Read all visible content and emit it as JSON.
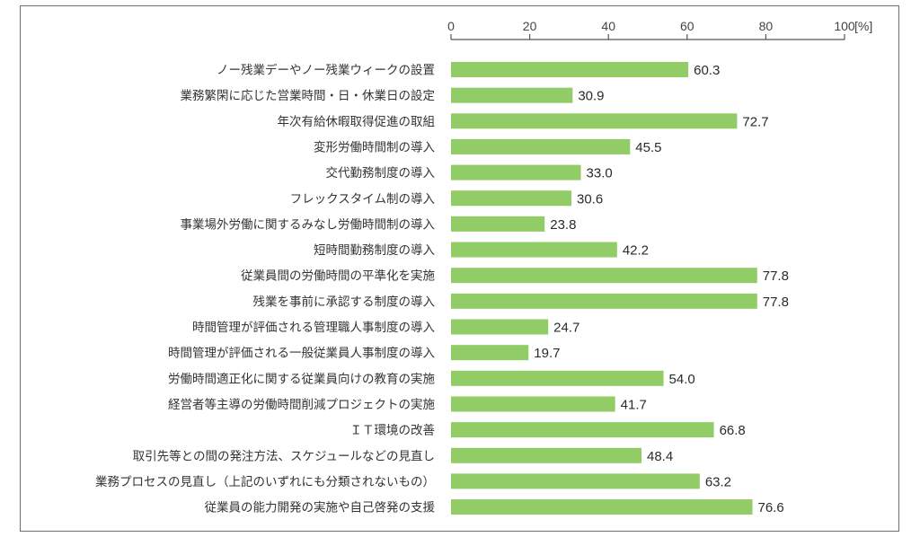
{
  "chart_data": {
    "type": "bar",
    "orientation": "horizontal",
    "unit_label": "[%]",
    "xlim": [
      0,
      100
    ],
    "xticks": [
      0,
      20,
      40,
      60,
      80,
      100
    ],
    "grid": false,
    "bar_color": "#92cc66",
    "categories": [
      "ノー残業デーやノー残業ウィークの設置",
      "業務繁閑に応じた営業時間・日・休業日の設定",
      "年次有給休暇取得促進の取組",
      "変形労働時間制の導入",
      "交代勤務制度の導入",
      "フレックスタイム制の導入",
      "事業場外労働に関するみなし労働時間制の導入",
      "短時間勤務制度の導入",
      "従業員間の労働時間の平準化を実施",
      "残業を事前に承認する制度の導入",
      "時間管理が評価される管理職人事制度の導入",
      "時間管理が評価される一般従業員人事制度の導入",
      "労働時間適正化に関する従業員向けの教育の実施",
      "経営者等主導の労働時間削減プロジェクトの実施",
      "ＩＴ環境の改善",
      "取引先等との間の発注方法、スケジュールなどの見直し",
      "業務プロセスの見直し（上記のいずれにも分類されないもの）",
      "従業員の能力開発の実施や自己啓発の支援"
    ],
    "values": [
      60.3,
      30.9,
      72.7,
      45.5,
      33.0,
      30.6,
      23.8,
      42.2,
      77.8,
      77.8,
      24.7,
      19.7,
      54.0,
      41.7,
      66.8,
      48.4,
      63.2,
      76.6
    ],
    "value_labels": [
      "60.3",
      "30.9",
      "72.7",
      "45.5",
      "33.0",
      "30.6",
      "23.8",
      "42.2",
      "77.8",
      "77.8",
      "24.7",
      "19.7",
      "54.0",
      "41.7",
      "66.8",
      "48.4",
      "63.2",
      "76.6"
    ]
  }
}
